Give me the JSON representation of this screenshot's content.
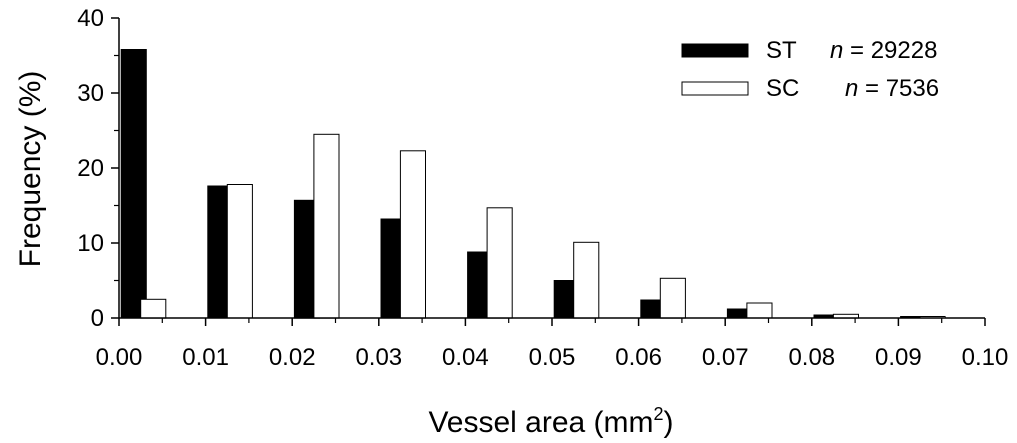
{
  "chart_data": {
    "type": "bar",
    "xlabel_main": "Vessel area (mm",
    "xlabel_sup": "2",
    "xlabel_close": ")",
    "ylabel": "Frequency (%)",
    "xlim": [
      0.0,
      0.1
    ],
    "ylim": [
      0,
      40
    ],
    "x_ticks": [
      "0.00",
      "0.01",
      "0.02",
      "0.03",
      "0.04",
      "0.05",
      "0.06",
      "0.07",
      "0.08",
      "0.09",
      "0.10"
    ],
    "y_ticks": [
      "0",
      "10",
      "20",
      "30",
      "40"
    ],
    "categories": [
      "0.00–0.01",
      "0.01–0.02",
      "0.02–0.03",
      "0.03–0.04",
      "0.04–0.05",
      "0.05–0.06",
      "0.06–0.07",
      "0.07–0.08",
      "0.08–0.09",
      "0.09–0.10"
    ],
    "bin_start": [
      0.0,
      0.01,
      0.02,
      0.03,
      0.04,
      0.05,
      0.06,
      0.07,
      0.08,
      0.09
    ],
    "series": [
      {
        "name": "ST",
        "n_label": "n",
        "n_value": " = 29228",
        "color": "#000000",
        "values": [
          35.8,
          17.6,
          15.7,
          13.2,
          8.8,
          5.0,
          2.4,
          1.2,
          0.4,
          0.2
        ]
      },
      {
        "name": "SC",
        "n_label": "n",
        "n_value": " = 7536",
        "color": "#ffffff",
        "values": [
          2.5,
          17.8,
          24.5,
          22.3,
          14.7,
          10.1,
          5.3,
          2.0,
          0.5,
          0.2
        ]
      }
    ],
    "legend_position": "top-right",
    "grid": false
  }
}
